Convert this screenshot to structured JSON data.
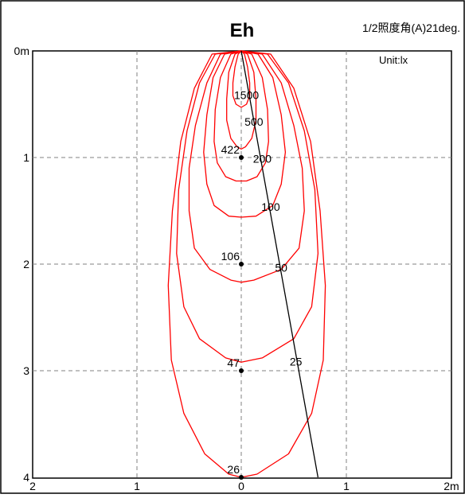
{
  "chart_data": {
    "type": "contour",
    "title": "Eh",
    "subtitle": "1/2照度角(A)21deg.",
    "unit_label": "Unit:lx",
    "x_ticks": [
      {
        "value": -2,
        "label": "2"
      },
      {
        "value": -1,
        "label": "1"
      },
      {
        "value": 0,
        "label": "0"
      },
      {
        "value": 1,
        "label": "1"
      },
      {
        "value": 2,
        "label": "2m"
      }
    ],
    "y_ticks": [
      {
        "value": 0,
        "label": "0m"
      },
      {
        "value": 1,
        "label": "1"
      },
      {
        "value": 2,
        "label": "2"
      },
      {
        "value": 3,
        "label": "3"
      },
      {
        "value": 4,
        "label": "4"
      }
    ],
    "xlim": [
      -2,
      2
    ],
    "ylim": [
      0,
      4
    ],
    "grid": true,
    "contour_color": "#ff0000",
    "contours": [
      {
        "label": "1500",
        "left": [
          [
            -0.03,
            0.03
          ],
          [
            -0.06,
            0.15
          ],
          [
            -0.08,
            0.3
          ],
          [
            -0.08,
            0.42
          ],
          [
            -0.05,
            0.5
          ],
          [
            0,
            0.53
          ]
        ],
        "right": [
          [
            0.03,
            0.03
          ],
          [
            0.06,
            0.15
          ],
          [
            0.08,
            0.3
          ],
          [
            0.08,
            0.42
          ],
          [
            0.05,
            0.5
          ],
          [
            0,
            0.53
          ]
        ],
        "label_pos": [
          0.05,
          0.45
        ]
      },
      {
        "label": "500",
        "left": [
          [
            -0.06,
            0.03
          ],
          [
            -0.12,
            0.2
          ],
          [
            -0.14,
            0.45
          ],
          [
            -0.14,
            0.65
          ],
          [
            -0.1,
            0.82
          ],
          [
            -0.04,
            0.9
          ],
          [
            0,
            0.92
          ]
        ],
        "right": [
          [
            0.06,
            0.03
          ],
          [
            0.12,
            0.2
          ],
          [
            0.14,
            0.45
          ],
          [
            0.14,
            0.65
          ],
          [
            0.1,
            0.82
          ],
          [
            0.04,
            0.9
          ],
          [
            0,
            0.92
          ]
        ],
        "label_pos": [
          0.12,
          0.7
        ]
      },
      {
        "label": "200",
        "left": [
          [
            -0.1,
            0.03
          ],
          [
            -0.2,
            0.25
          ],
          [
            -0.25,
            0.55
          ],
          [
            -0.26,
            0.85
          ],
          [
            -0.23,
            1.05
          ],
          [
            -0.15,
            1.18
          ],
          [
            -0.05,
            1.22
          ],
          [
            0,
            1.22
          ]
        ],
        "right": [
          [
            0.1,
            0.03
          ],
          [
            0.2,
            0.25
          ],
          [
            0.25,
            0.55
          ],
          [
            0.26,
            0.85
          ],
          [
            0.23,
            1.05
          ],
          [
            0.15,
            1.18
          ],
          [
            0.05,
            1.22
          ],
          [
            0,
            1.22
          ]
        ],
        "label_pos": [
          0.2,
          1.05
        ]
      },
      {
        "label": "100",
        "left": [
          [
            -0.16,
            0.03
          ],
          [
            -0.27,
            0.25
          ],
          [
            -0.33,
            0.6
          ],
          [
            -0.36,
            0.95
          ],
          [
            -0.33,
            1.25
          ],
          [
            -0.26,
            1.45
          ],
          [
            -0.12,
            1.55
          ],
          [
            0,
            1.56
          ]
        ],
        "right": [
          [
            0.16,
            0.03
          ],
          [
            0.3,
            0.25
          ],
          [
            0.38,
            0.6
          ],
          [
            0.42,
            0.95
          ],
          [
            0.38,
            1.25
          ],
          [
            0.3,
            1.45
          ],
          [
            0.14,
            1.55
          ],
          [
            0,
            1.56
          ]
        ],
        "label_pos": [
          0.28,
          1.5
        ]
      },
      {
        "label": "50",
        "left": [
          [
            -0.2,
            0.03
          ],
          [
            -0.33,
            0.3
          ],
          [
            -0.44,
            0.7
          ],
          [
            -0.5,
            1.1
          ],
          [
            -0.5,
            1.5
          ],
          [
            -0.45,
            1.85
          ],
          [
            -0.3,
            2.05
          ],
          [
            -0.1,
            2.15
          ],
          [
            0,
            2.17
          ]
        ],
        "right": [
          [
            0.2,
            0.03
          ],
          [
            0.38,
            0.3
          ],
          [
            0.5,
            0.7
          ],
          [
            0.58,
            1.1
          ],
          [
            0.6,
            1.5
          ],
          [
            0.55,
            1.85
          ],
          [
            0.38,
            2.05
          ],
          [
            0.12,
            2.15
          ],
          [
            0,
            2.17
          ]
        ],
        "label_pos": [
          0.38,
          2.07
        ]
      },
      {
        "label": "25",
        "left": [
          [
            -0.25,
            0.03
          ],
          [
            -0.4,
            0.3
          ],
          [
            -0.52,
            0.75
          ],
          [
            -0.6,
            1.3
          ],
          [
            -0.62,
            1.9
          ],
          [
            -0.55,
            2.4
          ],
          [
            -0.4,
            2.7
          ],
          [
            -0.15,
            2.88
          ],
          [
            0,
            2.92
          ]
        ],
        "right": [
          [
            0.25,
            0.03
          ],
          [
            0.45,
            0.3
          ],
          [
            0.6,
            0.75
          ],
          [
            0.7,
            1.3
          ],
          [
            0.73,
            1.9
          ],
          [
            0.67,
            2.4
          ],
          [
            0.5,
            2.7
          ],
          [
            0.2,
            2.88
          ],
          [
            0,
            2.92
          ]
        ],
        "label_pos": [
          0.52,
          2.95
        ]
      },
      {
        "label": "",
        "left": [
          [
            -0.28,
            0.03
          ],
          [
            -0.45,
            0.35
          ],
          [
            -0.58,
            0.85
          ],
          [
            -0.66,
            1.5
          ],
          [
            -0.7,
            2.2
          ],
          [
            -0.67,
            2.9
          ],
          [
            -0.55,
            3.4
          ],
          [
            -0.35,
            3.78
          ],
          [
            -0.12,
            3.97
          ],
          [
            0,
            4.0
          ]
        ],
        "right": [
          [
            0.28,
            0.03
          ],
          [
            0.5,
            0.35
          ],
          [
            0.66,
            0.85
          ],
          [
            0.75,
            1.5
          ],
          [
            0.8,
            2.2
          ],
          [
            0.78,
            2.9
          ],
          [
            0.67,
            3.4
          ],
          [
            0.45,
            3.78
          ],
          [
            0.15,
            3.97
          ],
          [
            0,
            4.0
          ]
        ],
        "label_pos": null
      }
    ],
    "center_points": [
      {
        "y": 1,
        "label": "422"
      },
      {
        "y": 2,
        "label": "106"
      },
      {
        "y": 3,
        "label": "47"
      },
      {
        "y": 4,
        "label": "26"
      }
    ],
    "beam_line": {
      "x0": 0,
      "y0": 0,
      "x1": 0.73,
      "y1": 4
    }
  }
}
